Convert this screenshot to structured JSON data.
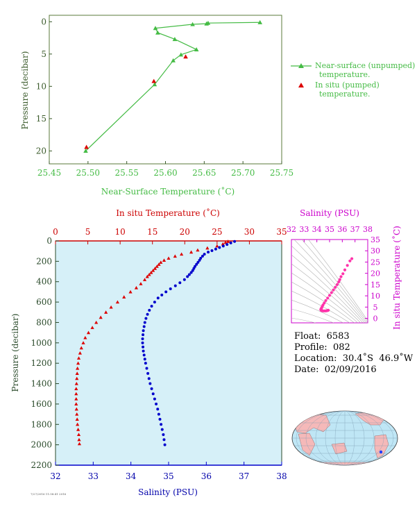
{
  "chart_data": [
    {
      "type": "line",
      "xlabel": "Near-Surface Temperature (˚C)",
      "ylabel": "Pressure (decibar)",
      "xlim": [
        25.45,
        25.75
      ],
      "ylim": [
        22,
        -1
      ],
      "x_ticks": [
        "25.45",
        "25.50",
        "25.55",
        "25.60",
        "25.65",
        "25.70",
        "25.75"
      ],
      "y_ticks": [
        "0",
        "5",
        "10",
        "15",
        "20"
      ],
      "legend_position": "right",
      "series": [
        {
          "name": "Near-surface (unpumped) temperature.",
          "color": "#44bb44",
          "marker": "triangle",
          "points": [
            [
              25.722,
              0.1
            ],
            [
              25.655,
              0.2
            ],
            [
              25.653,
              0.3
            ],
            [
              25.635,
              0.4
            ],
            [
              25.587,
              1.0
            ],
            [
              25.59,
              1.7
            ],
            [
              25.612,
              2.7
            ],
            [
              25.64,
              4.3
            ],
            [
              25.62,
              5.1
            ],
            [
              25.61,
              6.0
            ],
            [
              25.586,
              9.7
            ],
            [
              25.497,
              20.0
            ]
          ]
        },
        {
          "name": "In situ (pumped) temperature.",
          "color": "#dd0000",
          "marker": "triangle",
          "points": [
            [
              25.626,
              5.4
            ],
            [
              25.585,
              9.2
            ],
            [
              25.498,
              19.4
            ]
          ]
        }
      ]
    },
    {
      "type": "line",
      "xlabel_top": "In situ Temperature (˚C)",
      "xlabel_bottom": "Salinity (PSU)",
      "ylabel": "Pressure (decibar)",
      "xlim_top": [
        0,
        35
      ],
      "xlim_bottom": [
        32,
        38
      ],
      "ylim": [
        2200,
        0
      ],
      "x_ticks_top": [
        "0",
        "5",
        "10",
        "15",
        "20",
        "25",
        "30",
        "35"
      ],
      "x_ticks_bottom": [
        "32",
        "33",
        "34",
        "35",
        "36",
        "37",
        "38"
      ],
      "y_ticks": [
        "0",
        "200",
        "400",
        "600",
        "800",
        "1000",
        "1200",
        "1400",
        "1600",
        "1800",
        "2000",
        "2200"
      ],
      "background": "#d6f0f8",
      "temperature": {
        "color": "#dd0000",
        "marker": "triangle",
        "points": [
          [
            26.7,
            5
          ],
          [
            26.3,
            15
          ],
          [
            25.9,
            30
          ],
          [
            25.0,
            50
          ],
          [
            23.5,
            70
          ],
          [
            22.0,
            90
          ],
          [
            21.0,
            110
          ],
          [
            19.5,
            130
          ],
          [
            18.5,
            150
          ],
          [
            17.5,
            170
          ],
          [
            16.8,
            190
          ],
          [
            16.3,
            210
          ],
          [
            16.0,
            230
          ],
          [
            15.7,
            250
          ],
          [
            15.4,
            270
          ],
          [
            15.1,
            290
          ],
          [
            14.8,
            310
          ],
          [
            14.5,
            330
          ],
          [
            14.2,
            350
          ],
          [
            13.8,
            380
          ],
          [
            13.2,
            420
          ],
          [
            12.5,
            460
          ],
          [
            11.6,
            500
          ],
          [
            10.6,
            550
          ],
          [
            9.6,
            600
          ],
          [
            8.6,
            650
          ],
          [
            7.8,
            700
          ],
          [
            7.0,
            750
          ],
          [
            6.3,
            800
          ],
          [
            5.7,
            850
          ],
          [
            5.1,
            900
          ],
          [
            4.6,
            950
          ],
          [
            4.3,
            1000
          ],
          [
            4.0,
            1050
          ],
          [
            3.8,
            1100
          ],
          [
            3.6,
            1150
          ],
          [
            3.5,
            1200
          ],
          [
            3.4,
            1250
          ],
          [
            3.35,
            1300
          ],
          [
            3.3,
            1350
          ],
          [
            3.25,
            1400
          ],
          [
            3.2,
            1450
          ],
          [
            3.2,
            1500
          ],
          [
            3.2,
            1550
          ],
          [
            3.2,
            1600
          ],
          [
            3.25,
            1650
          ],
          [
            3.3,
            1700
          ],
          [
            3.35,
            1750
          ],
          [
            3.4,
            1800
          ],
          [
            3.5,
            1850
          ],
          [
            3.6,
            1900
          ],
          [
            3.65,
            1950
          ],
          [
            3.7,
            1990
          ]
        ]
      },
      "salinity": {
        "color": "#0000cc",
        "marker": "circle",
        "points": [
          [
            36.75,
            5
          ],
          [
            36.65,
            20
          ],
          [
            36.55,
            35
          ],
          [
            36.45,
            50
          ],
          [
            36.35,
            65
          ],
          [
            36.25,
            80
          ],
          [
            36.15,
            95
          ],
          [
            36.05,
            110
          ],
          [
            35.95,
            130
          ],
          [
            35.9,
            150
          ],
          [
            35.85,
            170
          ],
          [
            35.82,
            190
          ],
          [
            35.78,
            210
          ],
          [
            35.74,
            230
          ],
          [
            35.7,
            250
          ],
          [
            35.67,
            270
          ],
          [
            35.64,
            290
          ],
          [
            35.6,
            310
          ],
          [
            35.55,
            330
          ],
          [
            35.5,
            350
          ],
          [
            35.42,
            380
          ],
          [
            35.3,
            410
          ],
          [
            35.18,
            440
          ],
          [
            35.05,
            470
          ],
          [
            34.93,
            500
          ],
          [
            34.82,
            530
          ],
          [
            34.72,
            560
          ],
          [
            34.63,
            600
          ],
          [
            34.55,
            640
          ],
          [
            34.49,
            680
          ],
          [
            34.44,
            720
          ],
          [
            34.4,
            760
          ],
          [
            34.37,
            800
          ],
          [
            34.35,
            840
          ],
          [
            34.33,
            880
          ],
          [
            34.32,
            920
          ],
          [
            34.31,
            960
          ],
          [
            34.31,
            1000
          ],
          [
            34.32,
            1040
          ],
          [
            34.33,
            1080
          ],
          [
            34.35,
            1120
          ],
          [
            34.37,
            1160
          ],
          [
            34.39,
            1200
          ],
          [
            34.42,
            1250
          ],
          [
            34.45,
            1300
          ],
          [
            34.48,
            1350
          ],
          [
            34.51,
            1400
          ],
          [
            34.55,
            1450
          ],
          [
            34.59,
            1500
          ],
          [
            34.63,
            1550
          ],
          [
            34.67,
            1600
          ],
          [
            34.71,
            1650
          ],
          [
            34.74,
            1700
          ],
          [
            34.77,
            1750
          ],
          [
            34.8,
            1800
          ],
          [
            34.83,
            1850
          ],
          [
            34.86,
            1900
          ],
          [
            34.88,
            1950
          ],
          [
            34.9,
            2000
          ]
        ]
      }
    },
    {
      "type": "scatter",
      "xlabel": "Salinity (PSU)",
      "ylabel": "In situ Temperature (˚C)",
      "xlim": [
        32,
        38
      ],
      "ylim": [
        -2,
        35
      ],
      "x_ticks": [
        "32",
        "33",
        "34",
        "35",
        "36",
        "37",
        "38"
      ],
      "y_ticks": [
        "0",
        "5",
        "10",
        "15",
        "20",
        "25",
        "30",
        "35"
      ],
      "point_color": "#ff33aa",
      "points": [
        [
          36.75,
          26.5
        ],
        [
          36.6,
          25.5
        ],
        [
          36.4,
          23.5
        ],
        [
          36.2,
          21.5
        ],
        [
          36.05,
          19.8
        ],
        [
          35.9,
          18.5
        ],
        [
          35.8,
          17.2
        ],
        [
          35.72,
          16.2
        ],
        [
          35.6,
          15.0
        ],
        [
          35.45,
          13.8
        ],
        [
          35.3,
          12.6
        ],
        [
          35.15,
          11.4
        ],
        [
          35.0,
          10.2
        ],
        [
          34.85,
          9.0
        ],
        [
          34.7,
          7.9
        ],
        [
          34.58,
          6.8
        ],
        [
          34.48,
          5.9
        ],
        [
          34.42,
          5.2
        ],
        [
          34.37,
          4.6
        ],
        [
          34.33,
          4.2
        ],
        [
          34.31,
          3.9
        ],
        [
          34.32,
          3.7
        ],
        [
          34.36,
          3.5
        ],
        [
          34.42,
          3.4
        ],
        [
          34.5,
          3.3
        ],
        [
          34.6,
          3.3
        ],
        [
          34.7,
          3.3
        ],
        [
          34.78,
          3.4
        ],
        [
          34.85,
          3.5
        ],
        [
          34.9,
          3.6
        ]
      ]
    }
  ],
  "float_info": {
    "float": "Float:  6583",
    "profile": "Profile:  082",
    "location": "Location:  30.4˚S  46.9˚W",
    "date": "Date:  02/09/2016"
  },
  "map": {
    "marker_color": "#1e3cff",
    "land_color": "#f5b9b9",
    "ocean_color": "#bfe6f5"
  },
  "footer": {
    "stamp": "7/27/2016 11:58:41 2016"
  }
}
